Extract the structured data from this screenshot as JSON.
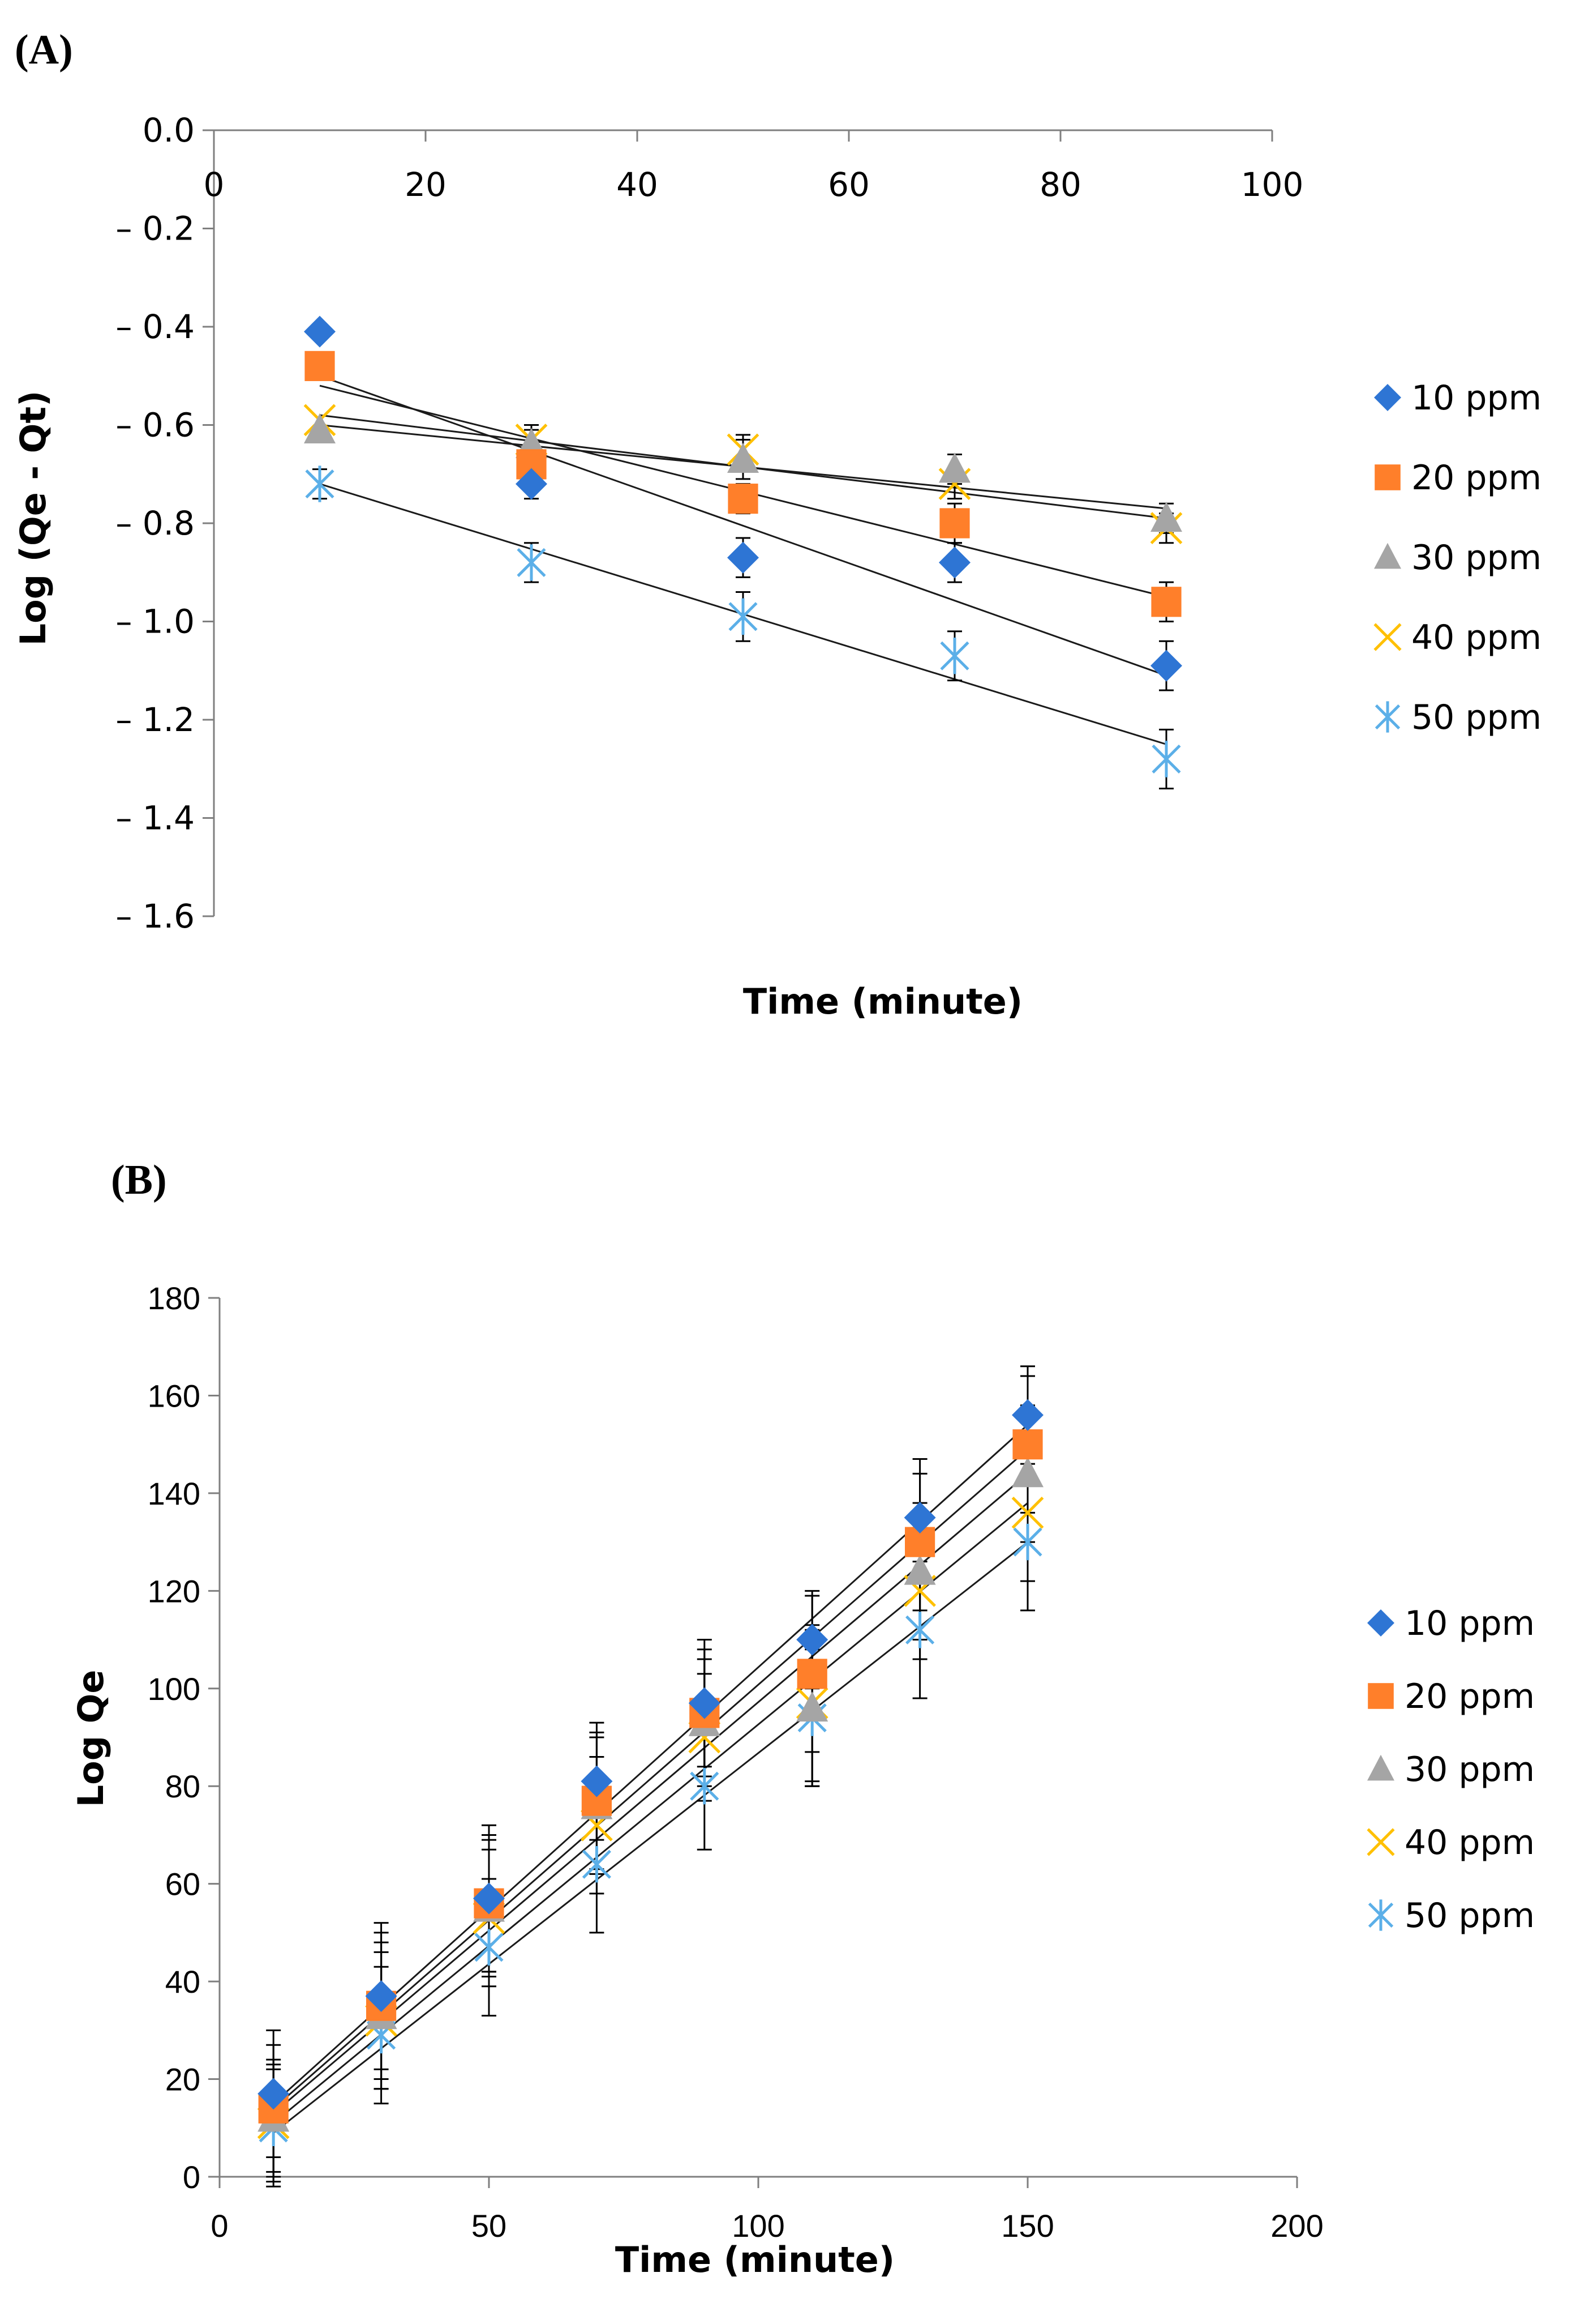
{
  "chart_data": [
    {
      "panel": "(A)",
      "type": "scatter",
      "xlabel": "Time (minute)",
      "ylabel": "Log (Qe - Qt)",
      "xlim": [
        0,
        100
      ],
      "ylim": [
        -1.6,
        0.0
      ],
      "x_ticks": [
        "0",
        "20",
        "40",
        "60",
        "80",
        "100"
      ],
      "y_ticks": [
        "0.0",
        "– 0.2",
        "– 0.4",
        "– 0.6",
        "– 0.8",
        "– 1.0",
        "– 1.2",
        "– 1.4",
        "– 1.6"
      ],
      "x_tick_values": [
        0,
        20,
        40,
        60,
        80,
        100
      ],
      "y_tick_values": [
        0,
        -0.2,
        -0.4,
        -0.6,
        -0.8,
        -1.0,
        -1.2,
        -1.4,
        -1.6
      ],
      "legend_position": "right",
      "x": [
        10,
        30,
        50,
        70,
        90
      ],
      "series": [
        {
          "name": "10 ppm",
          "marker": "diamond",
          "color": "#2E75D4",
          "values": [
            -0.41,
            -0.72,
            -0.87,
            -0.88,
            -1.09
          ],
          "errors": [
            0,
            0.03,
            0.04,
            0.04,
            0.05
          ],
          "fit": [
            -0.5,
            -1.11
          ]
        },
        {
          "name": "20 ppm",
          "marker": "square",
          "color": "#FF7F2A",
          "values": [
            -0.48,
            -0.68,
            -0.75,
            -0.8,
            -0.96
          ],
          "errors": [
            0,
            0.03,
            0.03,
            0.04,
            0.04
          ],
          "fit": [
            -0.52,
            -0.95
          ]
        },
        {
          "name": "30 ppm",
          "marker": "triangle",
          "color": "#A5A5A5",
          "values": [
            -0.61,
            -0.64,
            -0.67,
            -0.69,
            -0.79
          ],
          "errors": [
            0,
            0.03,
            0.04,
            0.03,
            0.03
          ],
          "fit": [
            -0.58,
            -0.79
          ]
        },
        {
          "name": "40 ppm",
          "marker": "x",
          "color": "#FFC000",
          "values": [
            -0.59,
            -0.63,
            -0.65,
            -0.72,
            -0.81
          ],
          "errors": [
            0,
            0.03,
            0.03,
            0.03,
            0.03
          ],
          "fit": [
            -0.6,
            -0.77
          ]
        },
        {
          "name": "50 ppm",
          "marker": "star",
          "color": "#5BAFE8",
          "values": [
            -0.72,
            -0.88,
            -0.99,
            -1.07,
            -1.28
          ],
          "errors": [
            0.03,
            0.04,
            0.05,
            0.05,
            0.06
          ],
          "fit": [
            -0.72,
            -1.25
          ]
        }
      ]
    },
    {
      "panel": "(B)",
      "type": "scatter",
      "xlabel": "Time (minute)",
      "ylabel": "Log Qe",
      "xlim": [
        0,
        200
      ],
      "ylim": [
        0,
        180
      ],
      "x_ticks": [
        "0",
        "50",
        "100",
        "150",
        "200"
      ],
      "y_ticks": [
        "0",
        "20",
        "40",
        "60",
        "80",
        "100",
        "120",
        "140",
        "160",
        "180"
      ],
      "x_tick_values": [
        0,
        50,
        100,
        150,
        200
      ],
      "y_tick_values": [
        0,
        20,
        40,
        60,
        80,
        100,
        120,
        140,
        160,
        180
      ],
      "legend_position": "right",
      "x": [
        10,
        30,
        50,
        70,
        90,
        110,
        130,
        150
      ],
      "series": [
        {
          "name": "10 ppm",
          "marker": "diamond",
          "color": "#2E75D4",
          "values": [
            17,
            37,
            57,
            81,
            97,
            110,
            135,
            156
          ],
          "errors": [
            13,
            15,
            15,
            12,
            13,
            10,
            12,
            10
          ],
          "fit": [
            15,
            154
          ]
        },
        {
          "name": "20 ppm",
          "marker": "square",
          "color": "#FF7F2A",
          "values": [
            14,
            35,
            56,
            77,
            95,
            103,
            130,
            150
          ],
          "errors": [
            13,
            15,
            14,
            14,
            13,
            16,
            14,
            14
          ],
          "fit": [
            14,
            149
          ]
        },
        {
          "name": "30 ppm",
          "marker": "triangle",
          "color": "#A5A5A5",
          "values": [
            12,
            33,
            55,
            76,
            93,
            96,
            124,
            144
          ],
          "errors": [
            12,
            15,
            14,
            14,
            13,
            16,
            14,
            14
          ],
          "fit": [
            13,
            144
          ]
        },
        {
          "name": "40 ppm",
          "marker": "x",
          "color": "#FFC000",
          "values": [
            11,
            32,
            53,
            72,
            90,
            97,
            120,
            136
          ],
          "errors": [
            12,
            14,
            14,
            14,
            13,
            16,
            14,
            14
          ],
          "fit": [
            11,
            138
          ]
        },
        {
          "name": "50 ppm",
          "marker": "star",
          "color": "#5BAFE8",
          "values": [
            10,
            29,
            47,
            64,
            80,
            94,
            112,
            130
          ],
          "errors": [
            12,
            14,
            14,
            14,
            13,
            14,
            14,
            14
          ],
          "fit": [
            9,
            130
          ]
        }
      ]
    }
  ]
}
